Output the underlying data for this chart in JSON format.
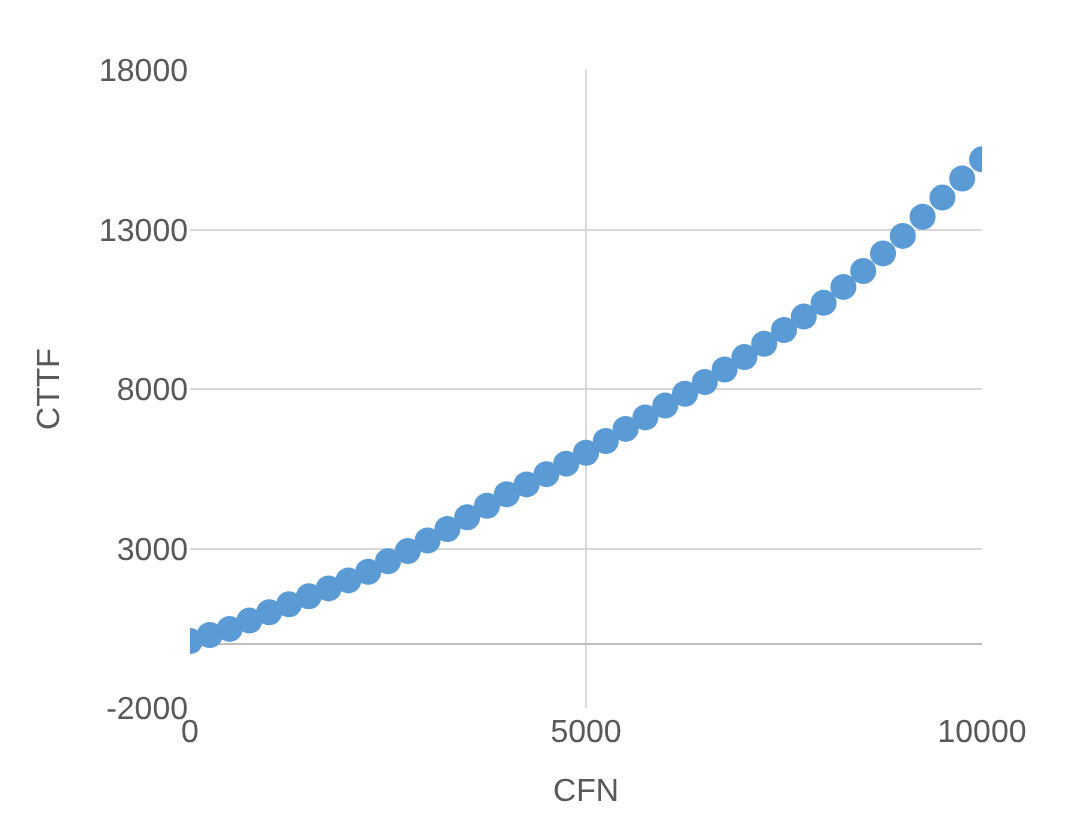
{
  "chart_data": {
    "type": "scatter",
    "xlabel": "CFN",
    "ylabel": "CTTF",
    "x": [
      0,
      250,
      500,
      750,
      1000,
      1250,
      1500,
      1750,
      2000,
      2250,
      2500,
      2750,
      3000,
      3250,
      3500,
      3750,
      4000,
      4250,
      4500,
      4750,
      5000,
      5250,
      5500,
      5750,
      6000,
      6250,
      6500,
      6750,
      7000,
      7250,
      7500,
      7750,
      8000,
      8250,
      8500,
      8750,
      9000,
      9250,
      9500,
      9750,
      10000
    ],
    "series": [
      {
        "color": "#5b9bd5",
        "values": [
          100,
          290,
          480,
          740,
          1000,
          1250,
          1500,
          1750,
          2000,
          2270,
          2600,
          2920,
          3250,
          3610,
          3980,
          4340,
          4700,
          5010,
          5330,
          5660,
          6000,
          6370,
          6750,
          7110,
          7480,
          7850,
          8220,
          8610,
          9000,
          9420,
          9850,
          10270,
          10700,
          11200,
          11700,
          12250,
          12800,
          13400,
          14000,
          14600,
          15200
        ]
      }
    ],
    "xlim": [
      0,
      10000
    ],
    "xticks": [
      0,
      5000,
      10000
    ],
    "ylim": [
      -2000,
      18000
    ],
    "yticks": [
      -2000,
      3000,
      8000,
      13000,
      18000
    ],
    "grid": true,
    "marker": "circle",
    "legend": false
  }
}
